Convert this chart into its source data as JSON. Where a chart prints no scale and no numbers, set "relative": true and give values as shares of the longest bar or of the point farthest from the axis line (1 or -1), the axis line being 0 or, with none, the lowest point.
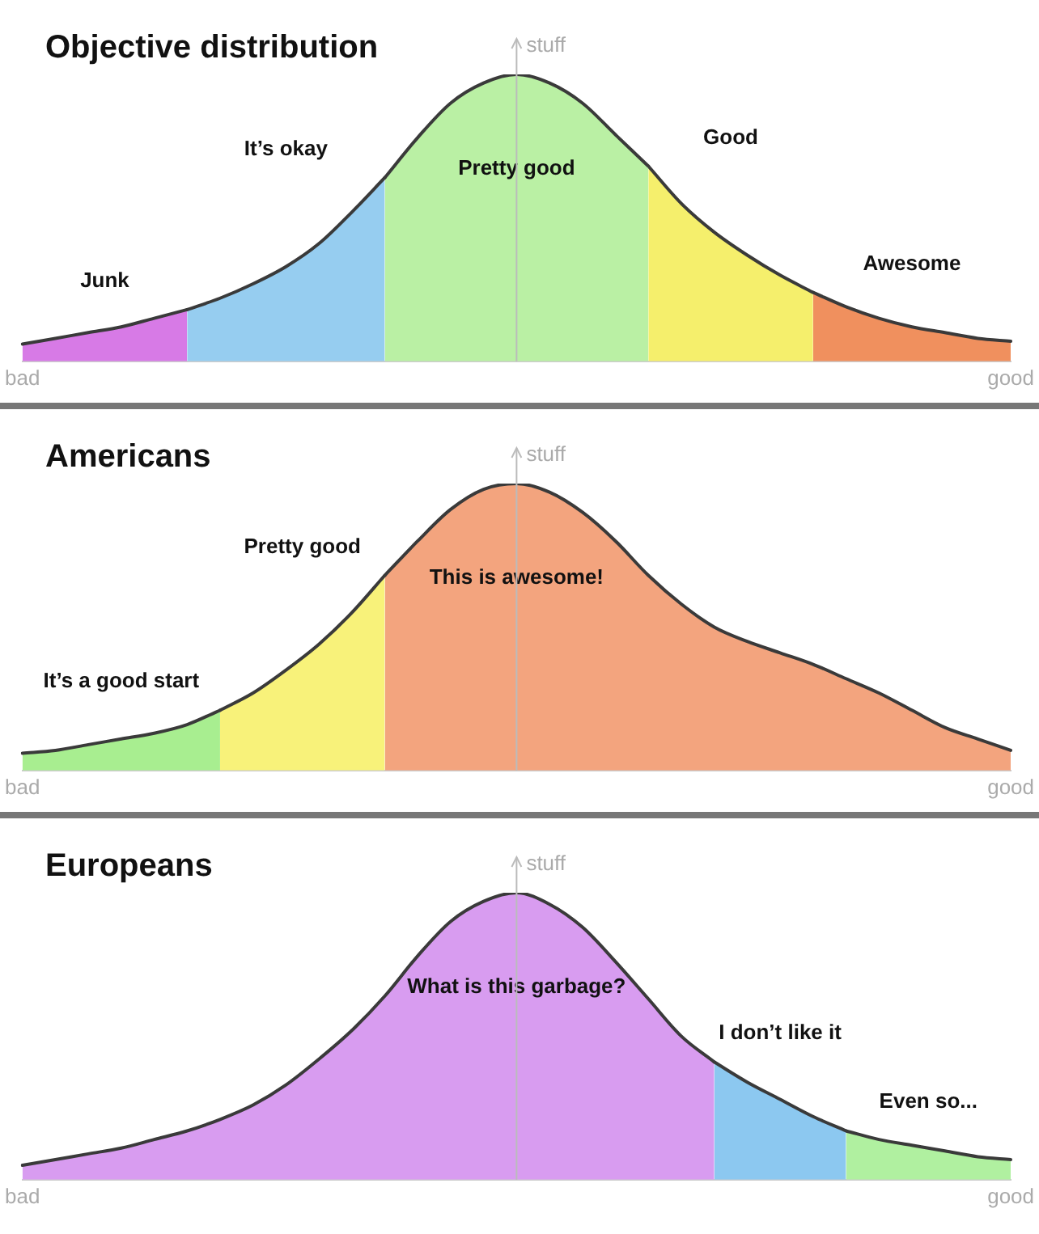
{
  "chart_data": [
    {
      "type": "area",
      "title": "Objective distribution",
      "ylabel": "stuff",
      "relative": true,
      "categories": [
        "bad",
        null,
        null,
        null,
        null,
        null,
        null,
        null,
        null,
        null,
        null,
        null,
        null,
        null,
        null,
        null,
        null,
        null,
        null,
        null,
        null,
        null,
        null,
        null,
        null,
        null,
        null,
        null,
        null,
        null,
        "good"
      ],
      "series": [
        {
          "name": "Junk",
          "color": "#d77ae6",
          "values": [
            0.06,
            0.08,
            0.1,
            0.12,
            0.15,
            0.18,
            null,
            null,
            null,
            null,
            null,
            null,
            null,
            null,
            null,
            null,
            null,
            null,
            null,
            null,
            null,
            null,
            null,
            null,
            null,
            null,
            null,
            null,
            null,
            null,
            null
          ]
        },
        {
          "name": "It’s okay",
          "color": "#96cdf0",
          "values": [
            null,
            null,
            null,
            null,
            null,
            0.18,
            0.22,
            0.27,
            0.33,
            0.41,
            0.52,
            0.64,
            null,
            null,
            null,
            null,
            null,
            null,
            null,
            null,
            null,
            null,
            null,
            null,
            null,
            null,
            null,
            null,
            null,
            null,
            null
          ]
        },
        {
          "name": "Pretty good",
          "color": "#baf0a4",
          "values": [
            null,
            null,
            null,
            null,
            null,
            null,
            null,
            null,
            null,
            null,
            null,
            0.64,
            0.78,
            0.9,
            0.97,
            1,
            0.97,
            0.9,
            0.79,
            0.68,
            null,
            null,
            null,
            null,
            null,
            null,
            null,
            null,
            null,
            null,
            null
          ]
        },
        {
          "name": "Good",
          "color": "#f5ef6c",
          "values": [
            null,
            null,
            null,
            null,
            null,
            null,
            null,
            null,
            null,
            null,
            null,
            null,
            null,
            null,
            null,
            null,
            null,
            null,
            null,
            0.68,
            0.55,
            0.45,
            0.37,
            0.3,
            0.24,
            null,
            null,
            null,
            null,
            null,
            null
          ]
        },
        {
          "name": "Awesome",
          "color": "#f0905e",
          "values": [
            null,
            null,
            null,
            null,
            null,
            null,
            null,
            null,
            null,
            null,
            null,
            null,
            null,
            null,
            null,
            null,
            null,
            null,
            null,
            null,
            null,
            null,
            null,
            null,
            0.24,
            0.19,
            0.15,
            0.12,
            0.1,
            0.08,
            0.07
          ]
        }
      ]
    },
    {
      "type": "area",
      "title": "Americans",
      "ylabel": "stuff",
      "relative": true,
      "categories": [
        "bad",
        null,
        null,
        null,
        null,
        null,
        null,
        null,
        null,
        null,
        null,
        null,
        null,
        null,
        null,
        null,
        null,
        null,
        null,
        null,
        null,
        null,
        null,
        null,
        null,
        null,
        null,
        null,
        null,
        null,
        "good"
      ],
      "series": [
        {
          "name": "It’s a good start",
          "color": "#a8ee90",
          "values": [
            0.06,
            0.07,
            0.09,
            0.11,
            0.13,
            0.16,
            0.21,
            null,
            null,
            null,
            null,
            null,
            null,
            null,
            null,
            null,
            null,
            null,
            null,
            null,
            null,
            null,
            null,
            null,
            null,
            null,
            null,
            null,
            null,
            null,
            null
          ]
        },
        {
          "name": "Pretty good",
          "color": "#f8f27a",
          "values": [
            null,
            null,
            null,
            null,
            null,
            null,
            0.21,
            0.27,
            0.35,
            0.44,
            0.55,
            0.68,
            null,
            null,
            null,
            null,
            null,
            null,
            null,
            null,
            null,
            null,
            null,
            null,
            null,
            null,
            null,
            null,
            null,
            null,
            null
          ]
        },
        {
          "name": "This is awesome!",
          "color": "#f3a47e",
          "values": [
            null,
            null,
            null,
            null,
            null,
            null,
            null,
            null,
            null,
            null,
            null,
            0.68,
            0.8,
            0.91,
            0.98,
            1,
            0.97,
            0.9,
            0.8,
            0.68,
            0.58,
            0.5,
            0.45,
            0.41,
            0.37,
            0.32,
            0.27,
            0.21,
            0.15,
            0.11,
            0.07
          ]
        }
      ]
    },
    {
      "type": "area",
      "title": "Europeans",
      "ylabel": "stuff",
      "relative": true,
      "categories": [
        "bad",
        null,
        null,
        null,
        null,
        null,
        null,
        null,
        null,
        null,
        null,
        null,
        null,
        null,
        null,
        null,
        null,
        null,
        null,
        null,
        null,
        null,
        null,
        null,
        null,
        null,
        null,
        null,
        null,
        null,
        "good"
      ],
      "series": [
        {
          "name": "What is this garbage?",
          "color": "#d89cf0",
          "values": [
            0.05,
            0.07,
            0.09,
            0.11,
            0.14,
            0.17,
            0.21,
            0.26,
            0.33,
            0.42,
            0.52,
            0.64,
            0.78,
            0.9,
            0.97,
            1,
            0.96,
            0.88,
            0.76,
            0.63,
            0.5,
            0.41,
            null,
            null,
            null,
            null,
            null,
            null,
            null,
            null,
            null
          ]
        },
        {
          "name": "I don’t like it",
          "color": "#8cc8f0",
          "values": [
            null,
            null,
            null,
            null,
            null,
            null,
            null,
            null,
            null,
            null,
            null,
            null,
            null,
            null,
            null,
            null,
            null,
            null,
            null,
            null,
            null,
            0.41,
            0.34,
            0.28,
            0.22,
            0.17,
            null,
            null,
            null,
            null,
            null
          ]
        },
        {
          "name": "Even so...",
          "color": "#b0f0a0",
          "values": [
            null,
            null,
            null,
            null,
            null,
            null,
            null,
            null,
            null,
            null,
            null,
            null,
            null,
            null,
            null,
            null,
            null,
            null,
            null,
            null,
            null,
            null,
            null,
            null,
            null,
            0.17,
            0.14,
            0.12,
            0.1,
            0.08,
            0.07
          ]
        }
      ]
    }
  ]
}
